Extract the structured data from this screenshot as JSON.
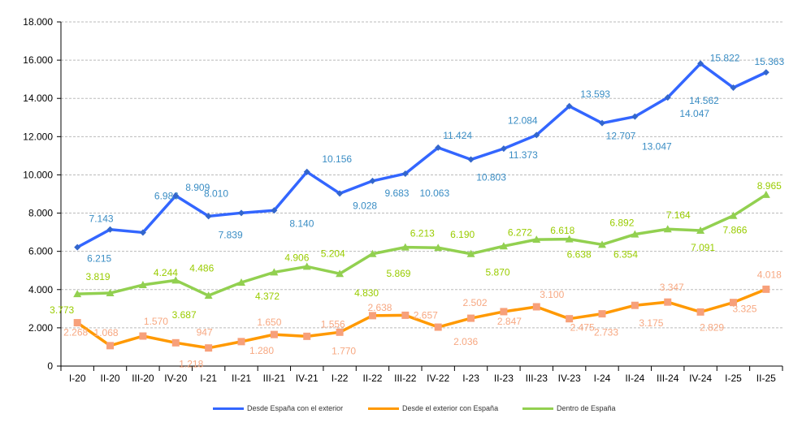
{
  "chart_data": {
    "type": "line",
    "categories": [
      "I-20",
      "II-20",
      "III-20",
      "IV-20",
      "I-21",
      "II-21",
      "III-21",
      "IV-21",
      "I-22",
      "II-22",
      "III-22",
      "IV-22",
      "I-23",
      "II-23",
      "III-23",
      "IV-23",
      "I-24",
      "II-24",
      "III-24",
      "IV-24",
      "I-25",
      "II-25"
    ],
    "ylim": [
      0,
      18000
    ],
    "yticks": [
      0,
      2000,
      4000,
      6000,
      8000,
      10000,
      12000,
      14000,
      16000,
      18000
    ],
    "ytick_labels": [
      "0",
      "2.000",
      "4.000",
      "6.000",
      "8.000",
      "10.000",
      "12.000",
      "14.000",
      "16.000",
      "18.000"
    ],
    "grid": "horizontal dashed",
    "legend_position": "bottom",
    "series": [
      {
        "name": "Desde España con el exterior",
        "color": "#3366FF",
        "label_color": "#3A8DC4",
        "marker": "diamond",
        "values": [
          6215,
          7143,
          6986,
          8909,
          7839,
          8010,
          8140,
          10156,
          9028,
          9683,
          10063,
          11424,
          10803,
          11373,
          12084,
          13593,
          12707,
          13047,
          14047,
          15822,
          14562,
          15363
        ],
        "labels": [
          "6.215",
          "7.143",
          "6.986",
          "8.909",
          "7.839",
          "8.010",
          "8.140",
          "10.156",
          "9.028",
          "9.683",
          "10.063",
          "11.424",
          "10.803",
          "11.373",
          "12.084",
          "13.593",
          "12.707",
          "13.047",
          "14.047",
          "15.822",
          "14.562",
          "15.363"
        ]
      },
      {
        "name": "Desde el exterior con España",
        "color": "#FF9900",
        "label_color": "#F7A882",
        "marker": "square",
        "marker_color": "#F7A07A",
        "values": [
          2268,
          1068,
          1570,
          1218,
          947,
          1280,
          1650,
          1556,
          1770,
          2638,
          2657,
          2036,
          2502,
          2847,
          3100,
          2475,
          2733,
          3175,
          3347,
          2829,
          3325,
          4018
        ],
        "labels": [
          "2.268",
          "1.068",
          "1.570",
          "1.218",
          "947",
          "1.280",
          "1.650",
          "1.556",
          "1.770",
          "2.638",
          "2.657",
          "2.036",
          "2.502",
          "2.847",
          "3.100",
          "2.475",
          "2.733",
          "3.175",
          "3.347",
          "2.829",
          "3.325",
          "4.018"
        ]
      },
      {
        "name": "Dentro de España",
        "color": "#92D050",
        "label_color": "#99CC00",
        "marker": "triangle",
        "values": [
          3773,
          3819,
          4244,
          4486,
          3687,
          4372,
          4906,
          5204,
          4830,
          5869,
          6213,
          6190,
          5870,
          6272,
          6618,
          6638,
          6354,
          6892,
          7164,
          7091,
          7866,
          8965
        ],
        "labels": [
          "3.773",
          "3.819",
          "4.244",
          "4.486",
          "3.687",
          "4.372",
          "4.906",
          "5.204",
          "4.830",
          "5.869",
          "6.213",
          "6.190",
          "5.870",
          "6.272",
          "6.618",
          "6.638",
          "6.354",
          "6.892",
          "7.164",
          "7.091",
          "7.866",
          "8.965"
        ]
      }
    ]
  }
}
